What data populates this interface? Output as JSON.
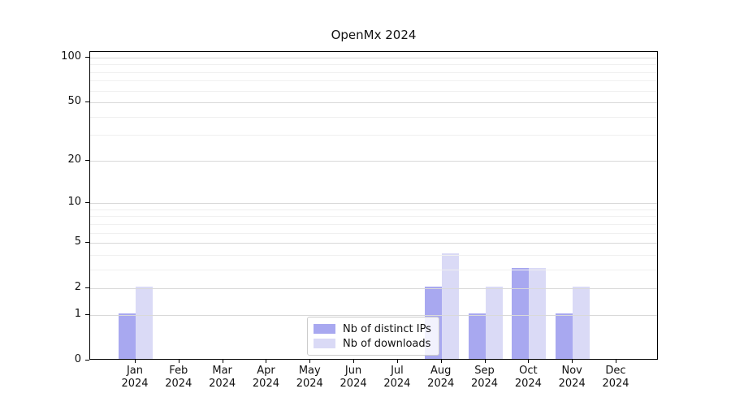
{
  "chart_data": {
    "type": "bar",
    "title": "OpenMx 2024",
    "categories": [
      "Jan 2024",
      "Feb 2024",
      "Mar 2024",
      "Apr 2024",
      "May 2024",
      "Jun 2024",
      "Jul 2024",
      "Aug 2024",
      "Sep 2024",
      "Oct 2024",
      "Nov 2024",
      "Dec 2024"
    ],
    "series": [
      {
        "name": "Nb of distinct IPs",
        "color": "#a8a8f0",
        "values": [
          1,
          0,
          0,
          0,
          0,
          0,
          0,
          2,
          1,
          3,
          1,
          0
        ]
      },
      {
        "name": "Nb of downloads",
        "color": "#dadaf6",
        "values": [
          2,
          0,
          0,
          0,
          0,
          0,
          0,
          4,
          2,
          3,
          2,
          0
        ]
      }
    ],
    "xlabel": "",
    "ylabel": "",
    "yscale": "log1p",
    "ylim": [
      0,
      100
    ],
    "yticks": [
      0,
      1,
      2,
      5,
      10,
      20,
      50,
      100
    ],
    "minor_gridlines": [
      3,
      4,
      6,
      7,
      8,
      9,
      30,
      40,
      60,
      70,
      80,
      90
    ],
    "grid": "horizontal",
    "legend_position": "bottom-center-inside",
    "colors": {
      "major_grid": "#d9d9d9",
      "minor_grid": "#f0f0f0",
      "spine": "#000000",
      "text": "#111111",
      "background": "#ffffff"
    }
  }
}
